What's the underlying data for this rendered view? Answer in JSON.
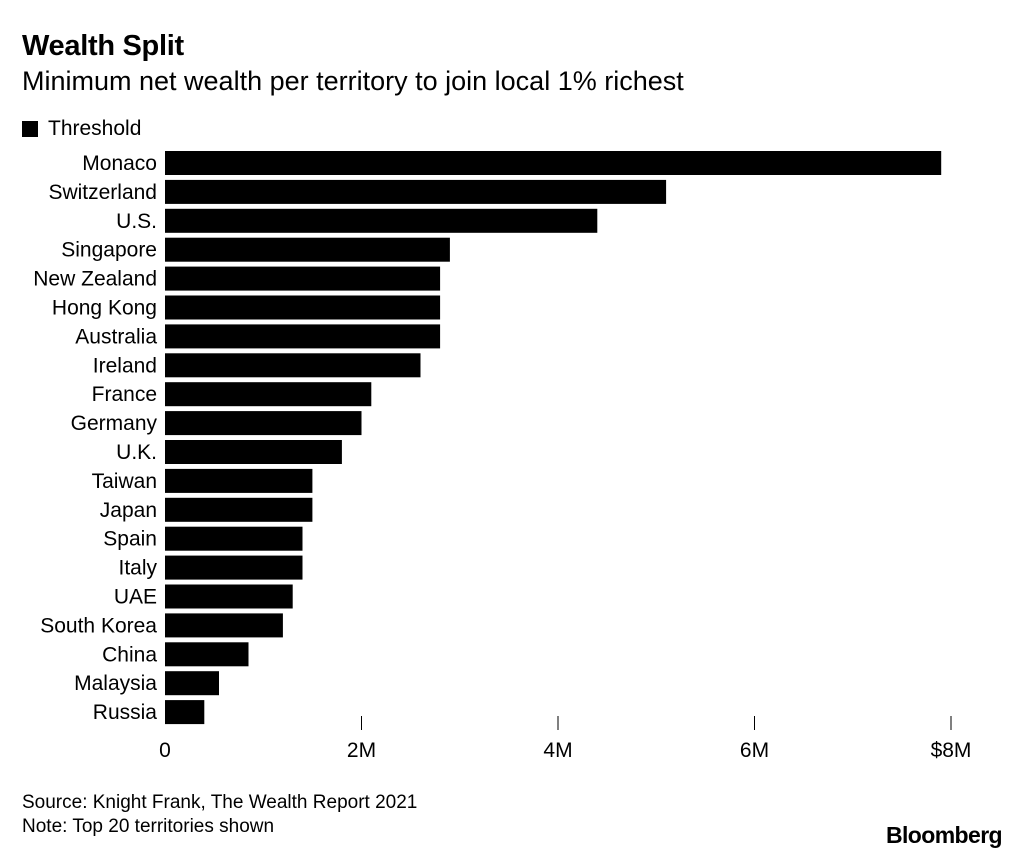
{
  "header": {
    "title": "Wealth Split",
    "subtitle": "Minimum net wealth per territory to join local 1% richest"
  },
  "legend": {
    "label": "Threshold"
  },
  "footer": {
    "source": "Source: Knight Frank, The Wealth Report 2021",
    "note": "Note: Top 20 territories shown",
    "brand": "Bloomberg"
  },
  "chart_data": {
    "type": "bar",
    "orientation": "horizontal",
    "categories": [
      "Monaco",
      "Switzerland",
      "U.S.",
      "Singapore",
      "New Zealand",
      "Hong Kong",
      "Australia",
      "Ireland",
      "France",
      "Germany",
      "U.K.",
      "Taiwan",
      "Japan",
      "Spain",
      "Italy",
      "UAE",
      "South Korea",
      "China",
      "Malaysia",
      "Russia"
    ],
    "series": [
      {
        "name": "Threshold",
        "values": [
          7.9,
          5.1,
          4.4,
          2.9,
          2.8,
          2.8,
          2.8,
          2.6,
          2.1,
          2.0,
          1.8,
          1.5,
          1.5,
          1.4,
          1.4,
          1.3,
          1.2,
          0.85,
          0.55,
          0.4
        ]
      }
    ],
    "unit": "millions of US dollars",
    "xlim": [
      0,
      8
    ],
    "xticks": [
      0,
      2,
      4,
      6,
      8
    ],
    "xtick_labels": [
      "0",
      "2M",
      "4M",
      "6M",
      "$8M"
    ],
    "bar_color": "#000000",
    "grid": false,
    "legend_position": "top-left"
  }
}
